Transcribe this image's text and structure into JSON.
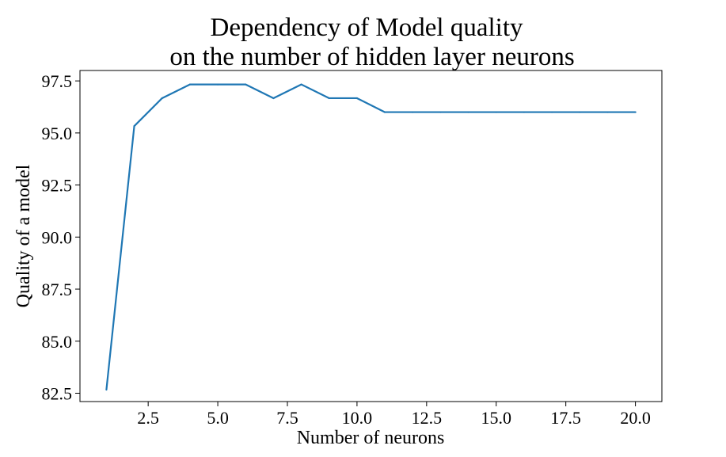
{
  "chart_data": {
    "type": "line",
    "title": [
      "Dependency of Model quality",
      "on the number of hidden layer neurons"
    ],
    "xlabel": "Number of neurons",
    "ylabel": "Quality of a model",
    "xlim": [
      0.05,
      20.95
    ],
    "ylim": [
      82.1,
      98.0
    ],
    "xticks": [
      "2.5",
      "5.0",
      "7.5",
      "10.0",
      "12.5",
      "15.0",
      "17.5",
      "20.0"
    ],
    "yticks": [
      "82.5",
      "85.0",
      "87.5",
      "90.0",
      "92.5",
      "95.0",
      "97.5"
    ],
    "grid": false,
    "series": [
      {
        "color": "#1f77b4",
        "x": [
          1,
          2,
          3,
          4,
          5,
          6,
          7,
          8,
          9,
          10,
          11,
          12,
          13,
          14,
          15,
          16,
          17,
          18,
          19,
          20
        ],
        "y": [
          82.67,
          95.33,
          96.67,
          97.33,
          97.33,
          97.33,
          96.67,
          97.33,
          96.67,
          96.67,
          96.0,
          96.0,
          96.0,
          96.0,
          96.0,
          96.0,
          96.0,
          96.0,
          96.0,
          96.0
        ]
      }
    ]
  }
}
